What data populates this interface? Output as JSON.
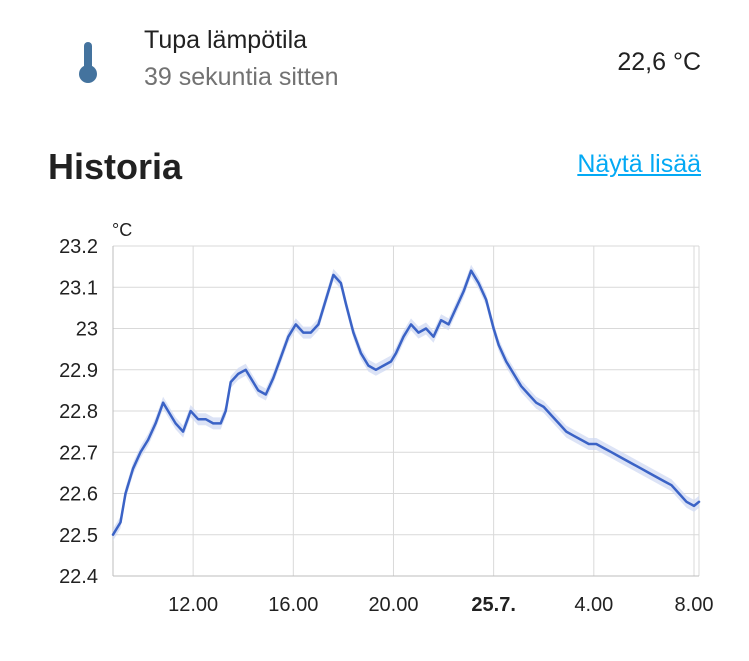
{
  "entity": {
    "icon": "thermometer-icon",
    "name": "Tupa lämpötila",
    "last_changed": "39 sekuntia sitten",
    "value": "22,6 °C"
  },
  "history": {
    "title": "Historia",
    "show_more_label": "Näytä lisää"
  },
  "colors": {
    "accent": "#03a9f4",
    "icon": "#44739e",
    "line": "#3b63c6",
    "band": "#cdd7f2",
    "grid": "#d9d9d9"
  },
  "chart_data": {
    "type": "line",
    "unit": "°C",
    "ylim": [
      22.4,
      23.2
    ],
    "y_ticks": [
      "23.2",
      "23.1",
      "23",
      "22.9",
      "22.8",
      "22.7",
      "22.6",
      "22.5",
      "22.4"
    ],
    "x_range_hours": [
      8.8,
      32.2
    ],
    "x_ticks": [
      {
        "hour": 12,
        "label": "12.00",
        "bold": false
      },
      {
        "hour": 16,
        "label": "16.00",
        "bold": false
      },
      {
        "hour": 20,
        "label": "20.00",
        "bold": false
      },
      {
        "hour": 24,
        "label": "25.7.",
        "bold": true
      },
      {
        "hour": 28,
        "label": "4.00",
        "bold": false
      },
      {
        "hour": 32,
        "label": "8.00",
        "bold": false
      }
    ],
    "grid": true,
    "series": [
      {
        "x": [
          8.8,
          9.1,
          9.3,
          9.6,
          9.9,
          10.2,
          10.5,
          10.8,
          11.0,
          11.3,
          11.6,
          11.9,
          12.2,
          12.5,
          12.8,
          13.1,
          13.3,
          13.5,
          13.8,
          14.1,
          14.4,
          14.6,
          14.9,
          15.2,
          15.5,
          15.8,
          16.1,
          16.4,
          16.7,
          17.0,
          17.3,
          17.6,
          17.9,
          18.1,
          18.4,
          18.7,
          19.0,
          19.3,
          19.6,
          19.9,
          20.1,
          20.4,
          20.7,
          21.0,
          21.3,
          21.6,
          21.9,
          22.2,
          22.5,
          22.8,
          23.1,
          23.4,
          23.7,
          24.0,
          24.2,
          24.5,
          24.8,
          25.1,
          25.4,
          25.7,
          26.0,
          26.3,
          26.6,
          26.9,
          27.2,
          27.5,
          27.8,
          28.1,
          28.4,
          28.7,
          29.0,
          29.3,
          29.6,
          29.9,
          30.2,
          30.5,
          30.8,
          31.1,
          31.4,
          31.7,
          32.0,
          32.2
        ],
        "y": [
          22.5,
          22.53,
          22.6,
          22.66,
          22.7,
          22.73,
          22.77,
          22.82,
          22.8,
          22.77,
          22.75,
          22.8,
          22.78,
          22.78,
          22.77,
          22.77,
          22.8,
          22.87,
          22.89,
          22.9,
          22.87,
          22.85,
          22.84,
          22.88,
          22.93,
          22.98,
          23.01,
          22.99,
          22.99,
          23.01,
          23.07,
          23.13,
          23.11,
          23.06,
          22.99,
          22.94,
          22.91,
          22.9,
          22.91,
          22.92,
          22.94,
          22.98,
          23.01,
          22.99,
          23.0,
          22.98,
          23.02,
          23.01,
          23.05,
          23.09,
          23.14,
          23.11,
          23.07,
          23.0,
          22.96,
          22.92,
          22.89,
          22.86,
          22.84,
          22.82,
          22.81,
          22.79,
          22.77,
          22.75,
          22.74,
          22.73,
          22.72,
          22.72,
          22.71,
          22.7,
          22.69,
          22.68,
          22.67,
          22.66,
          22.65,
          22.64,
          22.63,
          22.62,
          22.6,
          22.58,
          22.57,
          22.58
        ]
      }
    ]
  }
}
